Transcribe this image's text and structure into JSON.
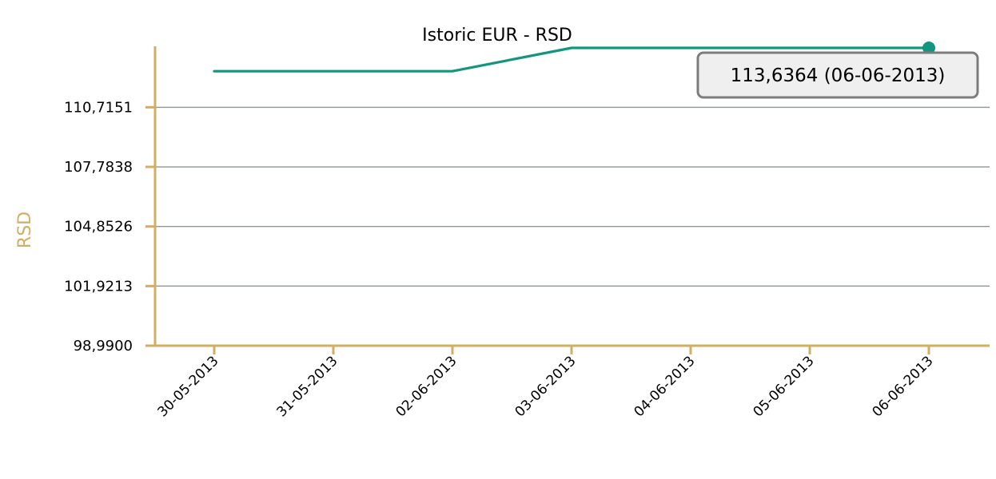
{
  "chart_data": {
    "type": "line",
    "title": "Istoric EUR - RSD",
    "xlabel": "",
    "ylabel": "RSD",
    "categories": [
      "30-05-2013",
      "31-05-2013",
      "02-06-2013",
      "03-06-2013",
      "04-06-2013",
      "05-06-2013",
      "06-06-2013"
    ],
    "series": [
      {
        "values": [
          112.49,
          112.49,
          112.49,
          113.6364,
          113.6364,
          113.6364,
          113.6364
        ]
      }
    ],
    "yticks": [
      "110,7151",
      "107,7838",
      "104,8526",
      "101,9213",
      "98,9900"
    ],
    "ylim": [
      98.99,
      113.6364
    ],
    "grid": true,
    "tooltip": "113,6364 (06-06-2013)",
    "colors": {
      "line": "#12967f",
      "axis": "#d2ad64",
      "grid": "#8e9696",
      "tooltip_bg": "#efefef",
      "tooltip_border": "#7c7c7c"
    }
  }
}
